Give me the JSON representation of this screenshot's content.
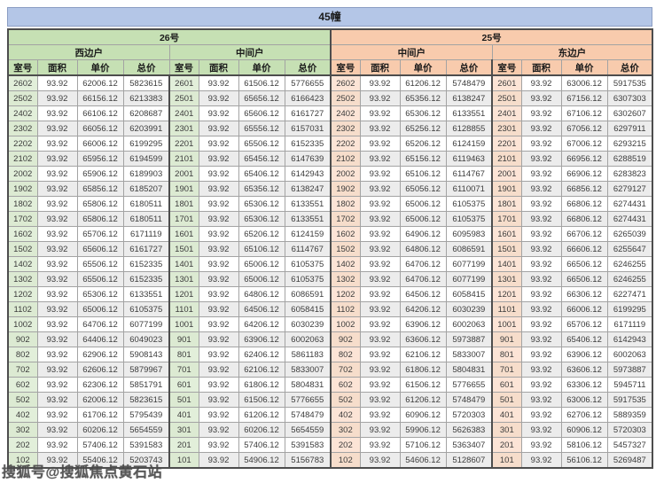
{
  "title": "45幢",
  "watermark": "搜狐号@搜狐焦点黄石站",
  "colors": {
    "title_band": "#b4c6e7",
    "unit26_header": "#c6e0b4",
    "unit25_header": "#f8cbad",
    "room_col_green": "#e2efda",
    "room_col_peach": "#fce4d6",
    "stripe_row": "#ececec"
  },
  "column_headers": [
    "室号",
    "面积",
    "单价",
    "总价"
  ],
  "units": [
    {
      "label": "26号",
      "theme": "green",
      "groups": [
        {
          "label": "西边户",
          "rows": [
            [
              "2602",
              "93.92",
              "62006.12",
              "5823615"
            ],
            [
              "2502",
              "93.92",
              "66156.12",
              "6213383"
            ],
            [
              "2402",
              "93.92",
              "66106.12",
              "6208687"
            ],
            [
              "2302",
              "93.92",
              "66056.12",
              "6203991"
            ],
            [
              "2202",
              "93.92",
              "66006.12",
              "6199295"
            ],
            [
              "2102",
              "93.92",
              "65956.12",
              "6194599"
            ],
            [
              "2002",
              "93.92",
              "65906.12",
              "6189903"
            ],
            [
              "1902",
              "93.92",
              "65856.12",
              "6185207"
            ],
            [
              "1802",
              "93.92",
              "65806.12",
              "6180511"
            ],
            [
              "1702",
              "93.92",
              "65806.12",
              "6180511"
            ],
            [
              "1602",
              "93.92",
              "65706.12",
              "6171119"
            ],
            [
              "1502",
              "93.92",
              "65606.12",
              "6161727"
            ],
            [
              "1402",
              "93.92",
              "65506.12",
              "6152335"
            ],
            [
              "1302",
              "93.92",
              "65506.12",
              "6152335"
            ],
            [
              "1202",
              "93.92",
              "65306.12",
              "6133551"
            ],
            [
              "1102",
              "93.92",
              "65006.12",
              "6105375"
            ],
            [
              "1002",
              "93.92",
              "64706.12",
              "6077199"
            ],
            [
              "902",
              "93.92",
              "64406.12",
              "6049023"
            ],
            [
              "802",
              "93.92",
              "62906.12",
              "5908143"
            ],
            [
              "702",
              "93.92",
              "62606.12",
              "5879967"
            ],
            [
              "602",
              "93.92",
              "62306.12",
              "5851791"
            ],
            [
              "502",
              "93.92",
              "62006.12",
              "5823615"
            ],
            [
              "402",
              "93.92",
              "61706.12",
              "5795439"
            ],
            [
              "302",
              "93.92",
              "60206.12",
              "5654559"
            ],
            [
              "202",
              "93.92",
              "57406.12",
              "5391583"
            ],
            [
              "102",
              "93.92",
              "55406.12",
              "5203743"
            ]
          ]
        },
        {
          "label": "中间户",
          "rows": [
            [
              "2601",
              "93.92",
              "61506.12",
              "5776655"
            ],
            [
              "2501",
              "93.92",
              "65656.12",
              "6166423"
            ],
            [
              "2401",
              "93.92",
              "65606.12",
              "6161727"
            ],
            [
              "2301",
              "93.92",
              "65556.12",
              "6157031"
            ],
            [
              "2201",
              "93.92",
              "65506.12",
              "6152335"
            ],
            [
              "2101",
              "93.92",
              "65456.12",
              "6147639"
            ],
            [
              "2001",
              "93.92",
              "65406.12",
              "6142943"
            ],
            [
              "1901",
              "93.92",
              "65356.12",
              "6138247"
            ],
            [
              "1801",
              "93.92",
              "65306.12",
              "6133551"
            ],
            [
              "1701",
              "93.92",
              "65306.12",
              "6133551"
            ],
            [
              "1601",
              "93.92",
              "65206.12",
              "6124159"
            ],
            [
              "1501",
              "93.92",
              "65106.12",
              "6114767"
            ],
            [
              "1401",
              "93.92",
              "65006.12",
              "6105375"
            ],
            [
              "1301",
              "93.92",
              "65006.12",
              "6105375"
            ],
            [
              "1201",
              "93.92",
              "64806.12",
              "6086591"
            ],
            [
              "1101",
              "93.92",
              "64506.12",
              "6058415"
            ],
            [
              "1001",
              "93.92",
              "64206.12",
              "6030239"
            ],
            [
              "901",
              "93.92",
              "63906.12",
              "6002063"
            ],
            [
              "801",
              "93.92",
              "62406.12",
              "5861183"
            ],
            [
              "701",
              "93.92",
              "62106.12",
              "5833007"
            ],
            [
              "601",
              "93.92",
              "61806.12",
              "5804831"
            ],
            [
              "501",
              "93.92",
              "61506.12",
              "5776655"
            ],
            [
              "401",
              "93.92",
              "61206.12",
              "5748479"
            ],
            [
              "301",
              "93.92",
              "60206.12",
              "5654559"
            ],
            [
              "201",
              "93.92",
              "57406.12",
              "5391583"
            ],
            [
              "101",
              "93.92",
              "54906.12",
              "5156783"
            ]
          ]
        }
      ]
    },
    {
      "label": "25号",
      "theme": "peach",
      "groups": [
        {
          "label": "中间户",
          "rows": [
            [
              "2602",
              "93.92",
              "61206.12",
              "5748479"
            ],
            [
              "2502",
              "93.92",
              "65356.12",
              "6138247"
            ],
            [
              "2402",
              "93.92",
              "65306.12",
              "6133551"
            ],
            [
              "2302",
              "93.92",
              "65256.12",
              "6128855"
            ],
            [
              "2202",
              "93.92",
              "65206.12",
              "6124159"
            ],
            [
              "2102",
              "93.92",
              "65156.12",
              "6119463"
            ],
            [
              "2002",
              "93.92",
              "65106.12",
              "6114767"
            ],
            [
              "1902",
              "93.92",
              "65056.12",
              "6110071"
            ],
            [
              "1802",
              "93.92",
              "65006.12",
              "6105375"
            ],
            [
              "1702",
              "93.92",
              "65006.12",
              "6105375"
            ],
            [
              "1602",
              "93.92",
              "64906.12",
              "6095983"
            ],
            [
              "1502",
              "93.92",
              "64806.12",
              "6086591"
            ],
            [
              "1402",
              "93.92",
              "64706.12",
              "6077199"
            ],
            [
              "1302",
              "93.92",
              "64706.12",
              "6077199"
            ],
            [
              "1202",
              "93.92",
              "64506.12",
              "6058415"
            ],
            [
              "1102",
              "93.92",
              "64206.12",
              "6030239"
            ],
            [
              "1002",
              "93.92",
              "63906.12",
              "6002063"
            ],
            [
              "902",
              "93.92",
              "63606.12",
              "5973887"
            ],
            [
              "802",
              "93.92",
              "62106.12",
              "5833007"
            ],
            [
              "702",
              "93.92",
              "61806.12",
              "5804831"
            ],
            [
              "602",
              "93.92",
              "61506.12",
              "5776655"
            ],
            [
              "502",
              "93.92",
              "61206.12",
              "5748479"
            ],
            [
              "402",
              "93.92",
              "60906.12",
              "5720303"
            ],
            [
              "302",
              "93.92",
              "59906.12",
              "5626383"
            ],
            [
              "202",
              "93.92",
              "57106.12",
              "5363407"
            ],
            [
              "102",
              "93.92",
              "54606.12",
              "5128607"
            ]
          ]
        },
        {
          "label": "东边户",
          "rows": [
            [
              "2601",
              "93.92",
              "63006.12",
              "5917535"
            ],
            [
              "2501",
              "93.92",
              "67156.12",
              "6307303"
            ],
            [
              "2401",
              "93.92",
              "67106.12",
              "6302607"
            ],
            [
              "2301",
              "93.92",
              "67056.12",
              "6297911"
            ],
            [
              "2201",
              "93.92",
              "67006.12",
              "6293215"
            ],
            [
              "2101",
              "93.92",
              "66956.12",
              "6288519"
            ],
            [
              "2001",
              "93.92",
              "66906.12",
              "6283823"
            ],
            [
              "1901",
              "93.92",
              "66856.12",
              "6279127"
            ],
            [
              "1801",
              "93.92",
              "66806.12",
              "6274431"
            ],
            [
              "1701",
              "93.92",
              "66806.12",
              "6274431"
            ],
            [
              "1601",
              "93.92",
              "66706.12",
              "6265039"
            ],
            [
              "1501",
              "93.92",
              "66606.12",
              "6255647"
            ],
            [
              "1401",
              "93.92",
              "66506.12",
              "6246255"
            ],
            [
              "1301",
              "93.92",
              "66506.12",
              "6246255"
            ],
            [
              "1201",
              "93.92",
              "66306.12",
              "6227471"
            ],
            [
              "1101",
              "93.92",
              "66006.12",
              "6199295"
            ],
            [
              "1001",
              "93.92",
              "65706.12",
              "6171119"
            ],
            [
              "901",
              "93.92",
              "65406.12",
              "6142943"
            ],
            [
              "801",
              "93.92",
              "63906.12",
              "6002063"
            ],
            [
              "701",
              "93.92",
              "63606.12",
              "5973887"
            ],
            [
              "601",
              "93.92",
              "63306.12",
              "5945711"
            ],
            [
              "501",
              "93.92",
              "63006.12",
              "5917535"
            ],
            [
              "401",
              "93.92",
              "62706.12",
              "5889359"
            ],
            [
              "301",
              "93.92",
              "60906.12",
              "5720303"
            ],
            [
              "201",
              "93.92",
              "58106.12",
              "5457327"
            ],
            [
              "101",
              "93.92",
              "56106.12",
              "5269487"
            ]
          ]
        }
      ]
    }
  ]
}
